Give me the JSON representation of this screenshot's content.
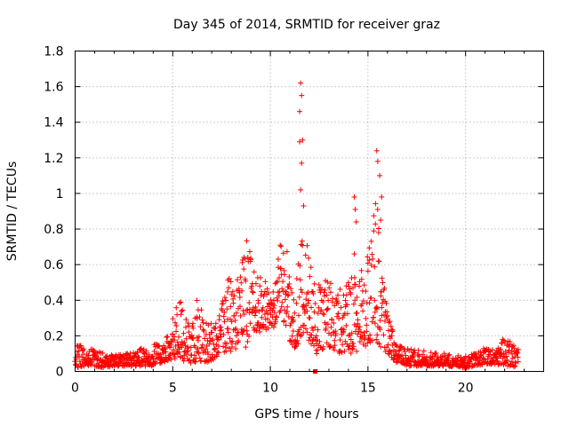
{
  "chart_data": {
    "type": "scatter",
    "title": "Day 345 of 2014, SRMTID for receiver graz",
    "xlabel": "GPS time / hours",
    "ylabel": "SRMTID / TECUs",
    "xlim": [
      0,
      24
    ],
    "ylim": [
      0,
      1.8
    ],
    "xticks": [
      0,
      5,
      10,
      15,
      20
    ],
    "yticks": [
      0,
      0.2,
      0.4,
      0.6,
      0.8,
      1.0,
      1.2,
      1.4,
      1.6,
      1.8
    ],
    "ytick_labels": [
      "0",
      "0.2",
      "0.4",
      "0.6",
      "0.8",
      "1",
      "1.2",
      "1.4",
      "1.6",
      "1.8"
    ],
    "grid": true,
    "marker": "plus",
    "color": "#ff0000",
    "series": [
      {
        "name": "SRMTID",
        "profile": [
          [
            0.0,
            0.02,
            0.16
          ],
          [
            0.5,
            0.03,
            0.14
          ],
          [
            1.0,
            0.03,
            0.12
          ],
          [
            1.5,
            0.02,
            0.1
          ],
          [
            2.0,
            0.03,
            0.09
          ],
          [
            2.5,
            0.03,
            0.1
          ],
          [
            3.0,
            0.03,
            0.12
          ],
          [
            3.5,
            0.03,
            0.14
          ],
          [
            4.0,
            0.03,
            0.16
          ],
          [
            4.5,
            0.05,
            0.14
          ],
          [
            5.0,
            0.06,
            0.3
          ],
          [
            5.2,
            0.08,
            0.49
          ],
          [
            5.5,
            0.06,
            0.36
          ],
          [
            6.0,
            0.04,
            0.28
          ],
          [
            6.3,
            0.06,
            0.43
          ],
          [
            6.8,
            0.05,
            0.26
          ],
          [
            7.3,
            0.08,
            0.34
          ],
          [
            7.8,
            0.12,
            0.52
          ],
          [
            8.3,
            0.1,
            0.55
          ],
          [
            8.8,
            0.14,
            0.76
          ],
          [
            9.2,
            0.2,
            0.55
          ],
          [
            9.7,
            0.22,
            0.52
          ],
          [
            10.2,
            0.25,
            0.45
          ],
          [
            10.5,
            0.3,
            0.72
          ],
          [
            10.9,
            0.22,
            0.7
          ],
          [
            11.1,
            0.11,
            0.45
          ],
          [
            11.4,
            0.15,
            0.55
          ],
          [
            11.6,
            0.2,
            0.9
          ],
          [
            11.9,
            0.18,
            0.7
          ],
          [
            12.3,
            0.1,
            0.52
          ],
          [
            12.8,
            0.1,
            0.55
          ],
          [
            13.3,
            0.1,
            0.48
          ],
          [
            13.8,
            0.1,
            0.45
          ],
          [
            14.2,
            0.1,
            0.6
          ],
          [
            14.6,
            0.12,
            0.55
          ],
          [
            15.0,
            0.15,
            0.7
          ],
          [
            15.4,
            0.15,
            1.1
          ],
          [
            15.7,
            0.12,
            0.65
          ],
          [
            16.0,
            0.1,
            0.35
          ],
          [
            16.4,
            0.05,
            0.18
          ],
          [
            17.0,
            0.03,
            0.13
          ],
          [
            18.0,
            0.03,
            0.12
          ],
          [
            19.0,
            0.03,
            0.1
          ],
          [
            20.0,
            0.02,
            0.09
          ],
          [
            20.5,
            0.03,
            0.1
          ],
          [
            21.0,
            0.04,
            0.14
          ],
          [
            21.5,
            0.04,
            0.12
          ],
          [
            22.0,
            0.03,
            0.2
          ],
          [
            22.7,
            0.02,
            0.14
          ]
        ],
        "peaks": [
          [
            11.55,
            1.62
          ],
          [
            11.6,
            1.55
          ],
          [
            11.5,
            1.46
          ],
          [
            11.65,
            1.3
          ],
          [
            11.5,
            1.29
          ],
          [
            11.6,
            1.17
          ],
          [
            11.55,
            1.02
          ],
          [
            11.7,
            0.93
          ],
          [
            14.3,
            0.98
          ],
          [
            14.35,
            0.91
          ],
          [
            14.4,
            0.84
          ],
          [
            14.3,
            0.66
          ],
          [
            15.45,
            1.24
          ],
          [
            15.5,
            1.18
          ],
          [
            15.6,
            1.1
          ],
          [
            15.7,
            0.98
          ],
          [
            15.65,
            0.85
          ],
          [
            15.55,
            0.78
          ]
        ],
        "outliers": [
          [
            12.3,
            0.0
          ]
        ]
      }
    ]
  }
}
